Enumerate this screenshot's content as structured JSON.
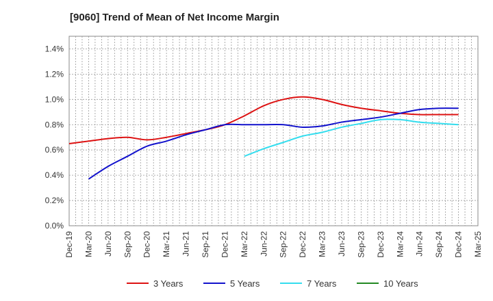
{
  "chart_data": {
    "type": "line",
    "title": "[9060]  Trend of Mean of Net Income Margin",
    "xlabel": "",
    "ylabel": "",
    "x_ticks": [
      "Dec-19",
      "Mar-20",
      "Jun-20",
      "Sep-20",
      "Dec-20",
      "Mar-21",
      "Jun-21",
      "Sep-21",
      "Dec-21",
      "Mar-22",
      "Jun-22",
      "Sep-22",
      "Dec-22",
      "Mar-23",
      "Jun-23",
      "Sep-23",
      "Dec-23",
      "Mar-24",
      "Jun-24",
      "Sep-24",
      "Dec-24",
      "Mar-25"
    ],
    "y_ticks": [
      "0.0%",
      "0.2%",
      "0.4%",
      "0.6%",
      "0.8%",
      "1.0%",
      "1.2%",
      "1.4%"
    ],
    "ylim": [
      0,
      1.5
    ],
    "grid": true,
    "legend_position": "bottom",
    "series": [
      {
        "name": "3 Years",
        "color": "#dd1111",
        "x": [
          "Dec-19",
          "Mar-20",
          "Jun-20",
          "Sep-20",
          "Dec-20",
          "Mar-21",
          "Jun-21",
          "Sep-21",
          "Dec-21",
          "Mar-22",
          "Jun-22",
          "Sep-22",
          "Dec-22",
          "Mar-23",
          "Jun-23",
          "Sep-23",
          "Dec-23",
          "Mar-24",
          "Jun-24",
          "Sep-24",
          "Dec-24"
        ],
        "values": [
          0.65,
          0.67,
          0.69,
          0.7,
          0.68,
          0.7,
          0.73,
          0.76,
          0.8,
          0.87,
          0.95,
          1.0,
          1.02,
          1.0,
          0.96,
          0.93,
          0.91,
          0.89,
          0.88,
          0.88,
          0.88
        ]
      },
      {
        "name": "5 Years",
        "color": "#1111cc",
        "x": [
          "Mar-20",
          "Jun-20",
          "Sep-20",
          "Dec-20",
          "Mar-21",
          "Jun-21",
          "Sep-21",
          "Dec-21",
          "Mar-22",
          "Jun-22",
          "Sep-22",
          "Dec-22",
          "Mar-23",
          "Jun-23",
          "Sep-23",
          "Dec-23",
          "Mar-24",
          "Jun-24",
          "Sep-24",
          "Dec-24"
        ],
        "values": [
          0.37,
          0.47,
          0.55,
          0.63,
          0.67,
          0.72,
          0.76,
          0.8,
          0.8,
          0.8,
          0.8,
          0.78,
          0.79,
          0.82,
          0.84,
          0.86,
          0.89,
          0.92,
          0.93,
          0.93
        ]
      },
      {
        "name": "7 Years",
        "color": "#33ddee",
        "x": [
          "Mar-22",
          "Jun-22",
          "Sep-22",
          "Dec-22",
          "Mar-23",
          "Jun-23",
          "Sep-23",
          "Dec-23",
          "Mar-24",
          "Jun-24",
          "Sep-24",
          "Dec-24"
        ],
        "values": [
          0.55,
          0.61,
          0.66,
          0.71,
          0.74,
          0.78,
          0.81,
          0.84,
          0.84,
          0.82,
          0.81,
          0.8
        ]
      },
      {
        "name": "10 Years",
        "color": "#228822",
        "x": [],
        "values": []
      }
    ]
  }
}
